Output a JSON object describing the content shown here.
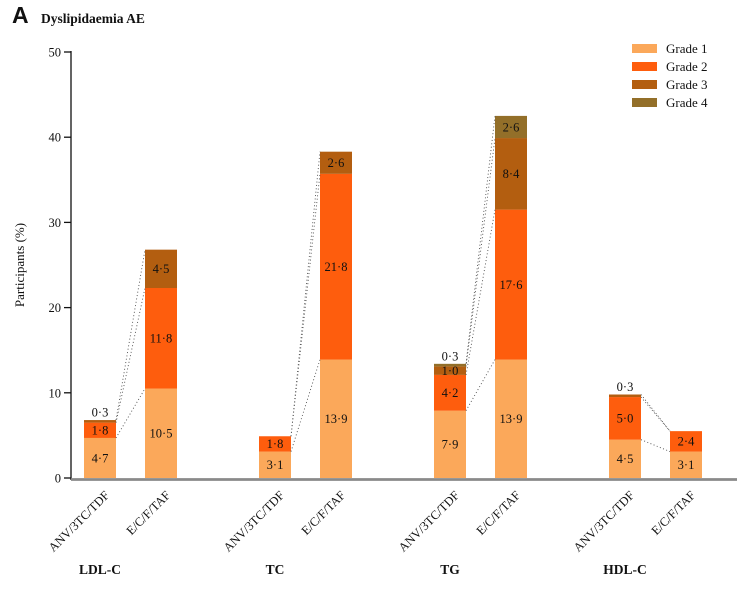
{
  "panel": {
    "label": "A",
    "title": "Dyslipidaemia AE"
  },
  "chart_data": {
    "type": "bar",
    "stacked": true,
    "title": "Dyslipidaemia AE",
    "ylabel": "Participants (%)",
    "ylim": [
      0,
      50
    ],
    "yticks": [
      0,
      10,
      20,
      30,
      40,
      50
    ],
    "grid": false,
    "legend_position": "top-right",
    "value_decimal_separator": "·",
    "connector_style": "dotted",
    "legend": [
      {
        "label": "Grade 1",
        "color": "#FBA85A"
      },
      {
        "label": "Grade 2",
        "color": "#FE5D0D"
      },
      {
        "label": "Grade 3",
        "color": "#B35E10"
      },
      {
        "label": "Grade 4",
        "color": "#936F29"
      }
    ],
    "groups": [
      {
        "label": "LDL-C",
        "bars": [
          {
            "label": "ANV/3TC/TDF",
            "values": [
              4.7,
              1.8,
              0.3,
              0
            ]
          },
          {
            "label": "E/C/F/TAF",
            "values": [
              10.5,
              11.8,
              4.5,
              0
            ]
          }
        ]
      },
      {
        "label": "TC",
        "bars": [
          {
            "label": "ANV/3TC/TDF",
            "values": [
              3.1,
              1.8,
              0,
              0
            ]
          },
          {
            "label": "E/C/F/TAF",
            "values": [
              13.9,
              21.8,
              2.6,
              0
            ]
          }
        ]
      },
      {
        "label": "TG",
        "bars": [
          {
            "label": "ANV/3TC/TDF",
            "values": [
              7.9,
              4.2,
              1.0,
              0.3
            ]
          },
          {
            "label": "E/C/F/TAF",
            "values": [
              13.9,
              17.6,
              8.4,
              2.6
            ]
          }
        ]
      },
      {
        "label": "HDL-C",
        "bars": [
          {
            "label": "ANV/3TC/TDF",
            "values": [
              4.5,
              5.0,
              0.3,
              0
            ]
          },
          {
            "label": "E/C/F/TAF",
            "values": [
              3.1,
              2.4,
              0,
              0
            ]
          }
        ]
      }
    ]
  }
}
